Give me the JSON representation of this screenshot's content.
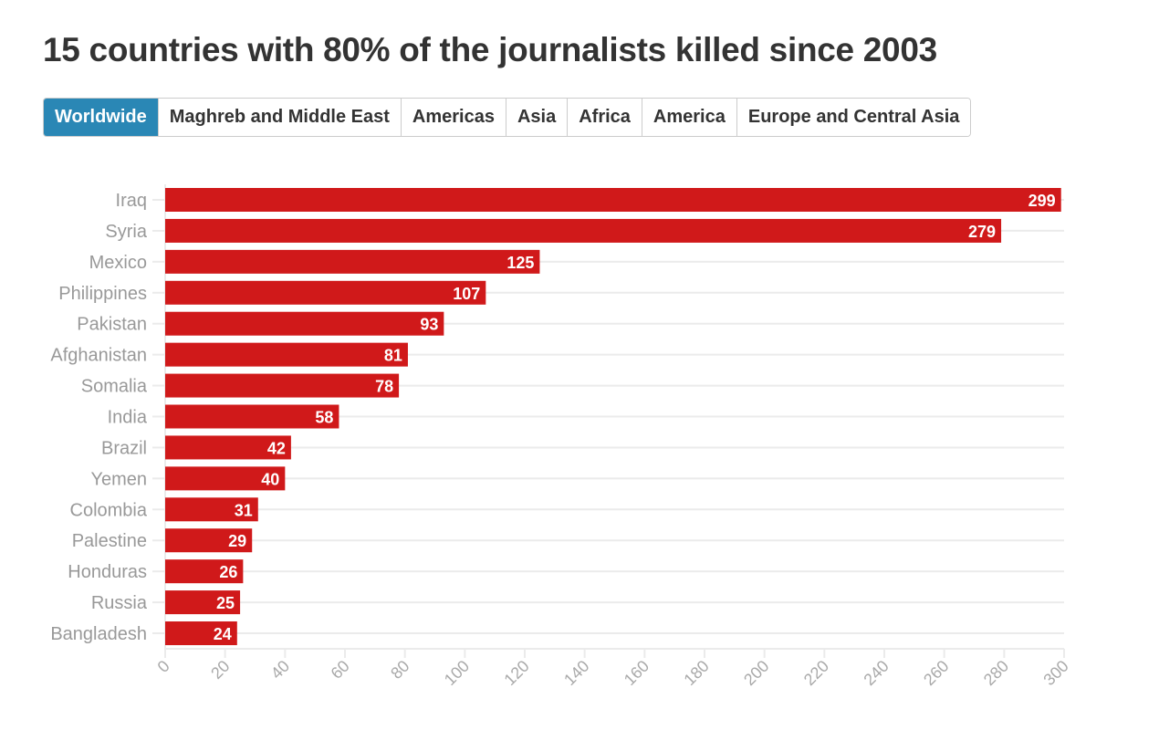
{
  "title": "15 countries with 80% of the journalists killed since 2003",
  "tabs": [
    {
      "label": "Worldwide",
      "active": true
    },
    {
      "label": "Maghreb and Middle East",
      "active": false
    },
    {
      "label": "Americas",
      "active": false
    },
    {
      "label": "Asia",
      "active": false
    },
    {
      "label": "Africa",
      "active": false
    },
    {
      "label": "America",
      "active": false
    },
    {
      "label": "Europe and Central Asia",
      "active": false
    }
  ],
  "colors": {
    "bar": "#d0191a",
    "active_tab": "#2a87b5",
    "grid": "#ebebeb"
  },
  "chart_data": {
    "type": "bar",
    "orientation": "horizontal",
    "categories": [
      "Iraq",
      "Syria",
      "Mexico",
      "Philippines",
      "Pakistan",
      "Afghanistan",
      "Somalia",
      "India",
      "Brazil",
      "Yemen",
      "Colombia",
      "Palestine",
      "Honduras",
      "Russia",
      "Bangladesh"
    ],
    "values": [
      299,
      279,
      125,
      107,
      93,
      81,
      78,
      58,
      42,
      40,
      31,
      29,
      26,
      25,
      24
    ],
    "xlim": [
      0,
      300
    ],
    "xticks": [
      0,
      20,
      40,
      60,
      80,
      100,
      120,
      140,
      160,
      180,
      200,
      220,
      240,
      260,
      280,
      300
    ],
    "data_labels": true,
    "grid": true
  }
}
